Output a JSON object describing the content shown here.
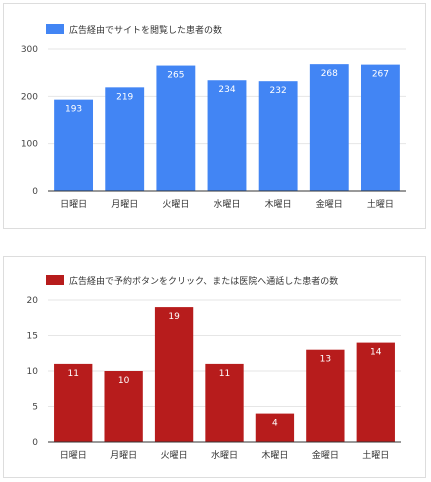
{
  "chart_data": [
    {
      "type": "bar",
      "title": "",
      "xlabel": "",
      "ylabel": "",
      "color": "#4285f4",
      "legend_position": "top-left",
      "grid": true,
      "ylim": [
        0,
        300
      ],
      "yticks": [
        0,
        100,
        200,
        300
      ],
      "categories": [
        "日曜日",
        "月曜日",
        "火曜日",
        "水曜日",
        "木曜日",
        "金曜日",
        "土曜日"
      ],
      "series": [
        {
          "name": "広告経由でサイトを閲覧した患者の数",
          "values": [
            193,
            219,
            265,
            234,
            232,
            268,
            267
          ]
        }
      ]
    },
    {
      "type": "bar",
      "title": "",
      "xlabel": "",
      "ylabel": "",
      "color": "#b71c1c",
      "legend_position": "top-left",
      "grid": true,
      "ylim": [
        0,
        20
      ],
      "yticks": [
        0,
        5,
        10,
        15,
        20
      ],
      "categories": [
        "日曜日",
        "月曜日",
        "火曜日",
        "水曜日",
        "木曜日",
        "金曜日",
        "土曜日"
      ],
      "series": [
        {
          "name": "広告経由で予約ボタンをクリック、または医院へ通話した患者の数",
          "values": [
            11,
            10,
            19,
            11,
            4,
            13,
            14
          ]
        }
      ]
    }
  ]
}
